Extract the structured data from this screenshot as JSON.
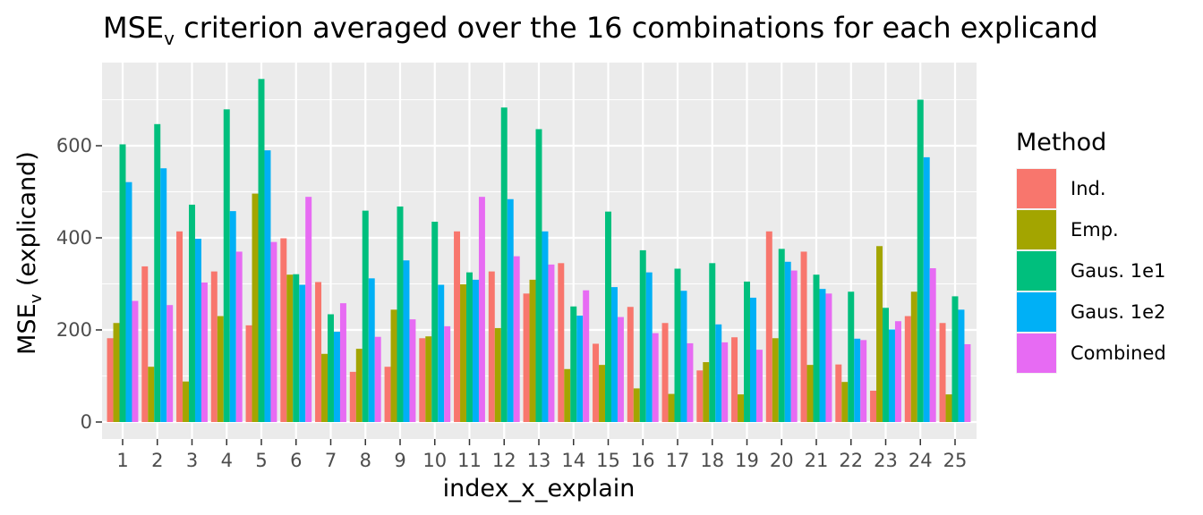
{
  "chart_data": {
    "type": "bar",
    "title": {
      "main": "MSE",
      "sub": "v",
      "rest": " criterion averaged over the 16 combinations for each explicand"
    },
    "xlabel": "index_x_explain",
    "ylabel": {
      "main": "MSE",
      "sub": "v",
      "rest": " (explicand)"
    },
    "ylim": [
      0,
      800
    ],
    "yticks": [
      0,
      200,
      400,
      600
    ],
    "grid": true,
    "legend_position": "right",
    "legend_title": "Method",
    "categories": [
      "1",
      "2",
      "3",
      "4",
      "5",
      "6",
      "7",
      "8",
      "9",
      "10",
      "11",
      "12",
      "13",
      "14",
      "15",
      "16",
      "17",
      "18",
      "19",
      "20",
      "21",
      "22",
      "23",
      "24",
      "25"
    ],
    "series": [
      {
        "name": "Ind.",
        "color": "#F8766D",
        "values": [
          182,
          338,
          414,
          327,
          210,
          399,
          304,
          109,
          120,
          182,
          414,
          327,
          279,
          345,
          170,
          250,
          215,
          112,
          184,
          414,
          370,
          125,
          68,
          230,
          215
        ]
      },
      {
        "name": "Emp.",
        "color": "#A3A500",
        "values": [
          215,
          120,
          88,
          230,
          496,
          320,
          148,
          159,
          244,
          186,
          299,
          204,
          309,
          115,
          124,
          73,
          61,
          130,
          60,
          182,
          124,
          87,
          382,
          283,
          60
        ]
      },
      {
        "name": "Gaus. 1e1",
        "color": "#00BF7D",
        "values": [
          603,
          647,
          472,
          679,
          745,
          321,
          234,
          459,
          468,
          435,
          325,
          683,
          636,
          251,
          457,
          373,
          333,
          345,
          305,
          376,
          320,
          283,
          248,
          700,
          273
        ]
      },
      {
        "name": "Gaus. 1e2",
        "color": "#00B0F6",
        "values": [
          521,
          551,
          398,
          458,
          590,
          298,
          196,
          312,
          351,
          298,
          309,
          484,
          414,
          231,
          293,
          325,
          285,
          212,
          270,
          348,
          289,
          181,
          201,
          575,
          244
        ]
      },
      {
        "name": "Combined",
        "color": "#E76BF3",
        "values": [
          263,
          254,
          303,
          370,
          391,
          489,
          258,
          185,
          223,
          208,
          489,
          360,
          342,
          286,
          228,
          193,
          171,
          173,
          157,
          329,
          279,
          178,
          219,
          334,
          169
        ]
      }
    ]
  },
  "colors": {
    "panel_bg": "#EBEBEB",
    "grid_major": "#FFFFFF",
    "tick_color": "#333333"
  }
}
